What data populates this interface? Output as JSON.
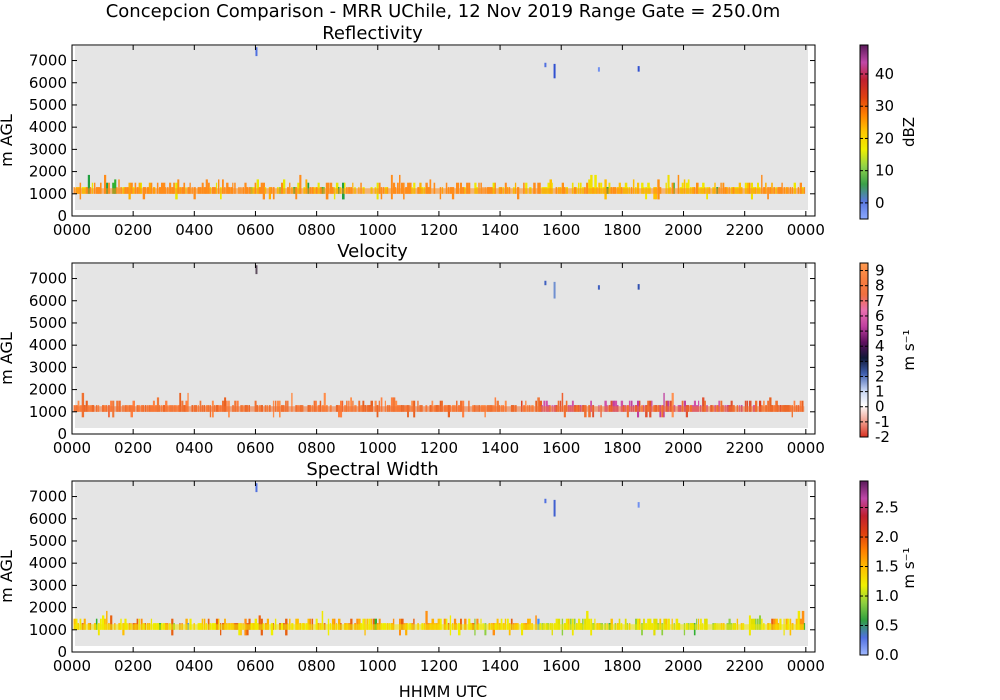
{
  "figure": {
    "title": "Concepcion Comparison - MRR UChile, 12 Nov 2019 Range Gate = 250.0m",
    "xlabel": "HHMM UTC"
  },
  "chart_data": [
    {
      "type": "heatmap",
      "title": "Reflectivity",
      "ylabel": "m AGL",
      "xlabel": "",
      "x_ticks": [
        "0000",
        "0200",
        "0400",
        "0600",
        "0800",
        "1000",
        "1200",
        "1400",
        "1600",
        "1800",
        "2000",
        "2200",
        "0000"
      ],
      "y_ticks": [
        "0",
        "1000",
        "2000",
        "3000",
        "4000",
        "5000",
        "6000",
        "7000"
      ],
      "colorbar": {
        "label": "dBZ",
        "range": [
          -5,
          49
        ],
        "ticks": [
          "0",
          "10",
          "20",
          "30",
          "40"
        ],
        "tick_values": [
          0,
          10,
          20,
          30,
          40
        ],
        "stops": [
          "#8aa8ff",
          "#5a78e0",
          "#3aa04a",
          "#8fd24a",
          "#f0f000",
          "#ffc800",
          "#ff8000",
          "#e04010",
          "#c02030",
          "#c048a8",
          "#5a1a5a"
        ]
      },
      "band": {
        "base_m": 1000,
        "top_m": 1500,
        "colors": [
          "#ff8c1a",
          "#ff8c1a",
          "#ff8c1a",
          "#ffb000",
          "#f0e800",
          "#ff8c1a",
          "#ff8c1a",
          "#e8e800"
        ],
        "late_colors": [
          "#f0e800",
          "#f0e000",
          "#ffc000",
          "#ff9010"
        ],
        "accents": [
          "#30b030",
          "#20a040",
          "#90d040"
        ]
      },
      "specks": [
        {
          "hour": 6.0,
          "h1": 7200,
          "h2": 7600,
          "color": "#5070e0"
        },
        {
          "hour": 15.45,
          "h1": 6700,
          "h2": 6900,
          "color": "#5070e0"
        },
        {
          "hour": 15.75,
          "h1": 6200,
          "h2": 6850,
          "color": "#3050d0"
        },
        {
          "hour": 17.2,
          "h1": 6500,
          "h2": 6700,
          "color": "#7090f0"
        },
        {
          "hour": 18.5,
          "h1": 6500,
          "h2": 6750,
          "color": "#3050d0"
        }
      ]
    },
    {
      "type": "heatmap",
      "title": "Velocity",
      "ylabel": "m AGL",
      "xlabel": "",
      "x_ticks": [
        "0000",
        "0200",
        "0400",
        "0600",
        "0800",
        "1000",
        "1200",
        "1400",
        "1600",
        "1800",
        "2000",
        "2200",
        "0000"
      ],
      "y_ticks": [
        "0",
        "1000",
        "2000",
        "3000",
        "4000",
        "5000",
        "6000",
        "7000"
      ],
      "colorbar": {
        "label": "m s⁻¹",
        "range": [
          -2,
          9.5
        ],
        "ticks": [
          "-2",
          "-1",
          "0",
          "1",
          "2",
          "3",
          "4",
          "5",
          "6",
          "7",
          "8",
          "9"
        ],
        "tick_values": [
          -2,
          -1,
          0,
          1,
          2,
          3,
          4,
          5,
          6,
          7,
          8,
          9
        ],
        "stops": [
          "#d83020",
          "#f0a090",
          "#ffffff",
          "#c0d0f0",
          "#4060b0",
          "#101838",
          "#601060",
          "#c040a0",
          "#e870b0",
          "#f07040",
          "#f88040",
          "#ff9a50"
        ]
      },
      "band": {
        "base_m": 1000,
        "top_m": 1500,
        "colors": [
          "#f07030",
          "#ff8040",
          "#e86020",
          "#f07838",
          "#ff8c48"
        ],
        "late_colors": [
          "#c040a0",
          "#d050a8",
          "#e05030",
          "#f07030"
        ],
        "accents": [
          "#e04020",
          "#ff9050",
          "#f06030"
        ]
      },
      "specks": [
        {
          "hour": 6.0,
          "h1": 7200,
          "h2": 7600,
          "color": "#605060"
        },
        {
          "hour": 15.45,
          "h1": 6700,
          "h2": 6900,
          "color": "#4060c0"
        },
        {
          "hour": 15.75,
          "h1": 6100,
          "h2": 6850,
          "color": "#7090d0"
        },
        {
          "hour": 17.2,
          "h1": 6500,
          "h2": 6700,
          "color": "#4060c0"
        },
        {
          "hour": 18.5,
          "h1": 6500,
          "h2": 6750,
          "color": "#3050b0"
        }
      ]
    },
    {
      "type": "heatmap",
      "title": "Spectral Width",
      "ylabel": "m AGL",
      "xlabel": "HHMM UTC",
      "x_ticks": [
        "0000",
        "0200",
        "0400",
        "0600",
        "0800",
        "1000",
        "1200",
        "1400",
        "1600",
        "1800",
        "2000",
        "2200",
        "0000"
      ],
      "y_ticks": [
        "0",
        "1000",
        "2000",
        "3000",
        "4000",
        "5000",
        "6000",
        "7000"
      ],
      "colorbar": {
        "label": "m s⁻¹",
        "range": [
          0,
          2.95
        ],
        "ticks": [
          "0.0",
          "0.5",
          "1.0",
          "1.5",
          "2.0",
          "2.5"
        ],
        "tick_values": [
          0,
          0.5,
          1.0,
          1.5,
          2.0,
          2.5
        ],
        "stops": [
          "#a0b8ff",
          "#5070e0",
          "#30a040",
          "#90d040",
          "#f0f000",
          "#ffc000",
          "#ff8000",
          "#e04010",
          "#c02030",
          "#c048a8",
          "#5a1a5a"
        ]
      },
      "band": {
        "base_m": 1000,
        "top_m": 1500,
        "colors": [
          "#f0e800",
          "#ff9010",
          "#ffc000",
          "#f0f000",
          "#e86010",
          "#ffb000"
        ],
        "late_colors": [
          "#f0e800",
          "#e0e000",
          "#90d040",
          "#ffc000"
        ],
        "accents": [
          "#30b030",
          "#4090ff",
          "#90d040"
        ]
      },
      "specks": [
        {
          "hour": 6.0,
          "h1": 7200,
          "h2": 7600,
          "color": "#5070e0"
        },
        {
          "hour": 15.45,
          "h1": 6700,
          "h2": 6900,
          "color": "#5070e0"
        },
        {
          "hour": 15.75,
          "h1": 6100,
          "h2": 6850,
          "color": "#4060d0"
        },
        {
          "hour": 18.5,
          "h1": 6500,
          "h2": 6750,
          "color": "#7090f0"
        }
      ]
    }
  ]
}
